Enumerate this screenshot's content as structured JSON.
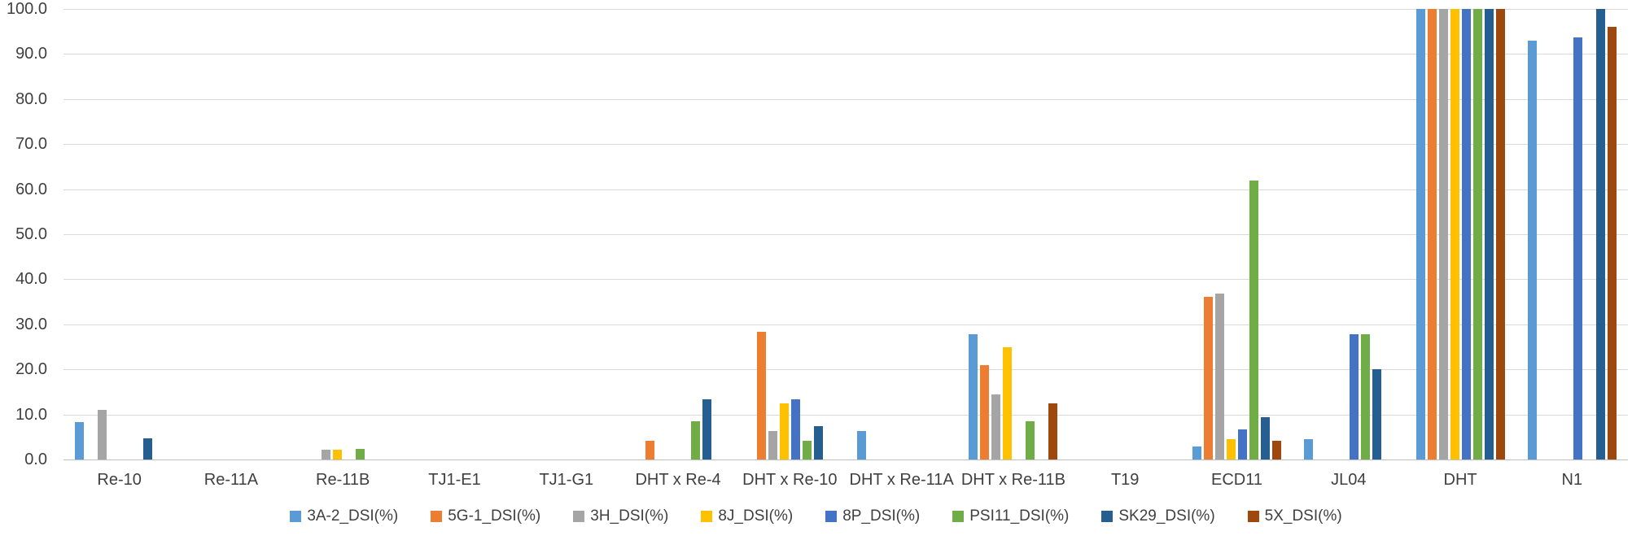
{
  "chart_data": {
    "type": "bar",
    "title": "",
    "xlabel": "",
    "ylabel": "",
    "ylim": [
      0,
      100
    ],
    "ytick_step": 10,
    "ytick_labels": [
      "0.0",
      "10.0",
      "20.0",
      "30.0",
      "40.0",
      "50.0",
      "60.0",
      "70.0",
      "80.0",
      "90.0",
      "100.0"
    ],
    "grid": true,
    "legend_position": "bottom",
    "categories": [
      "Re-10",
      "Re-11A",
      "Re-11B",
      "TJ1-E1",
      "TJ1-G1",
      "DHT x Re-4",
      "DHT x Re-10",
      "DHT x Re-11A",
      "DHT x Re-11B",
      "T19",
      "ECD11",
      "JL04",
      "DHT",
      "N1"
    ],
    "series": [
      {
        "name": "3A-2_DSI(%)",
        "color": "#5B9BD5",
        "values": [
          8.3,
          0,
          0,
          0,
          0,
          0,
          0,
          6.3,
          27.8,
          0,
          2.9,
          4.6,
          100,
          93.0
        ]
      },
      {
        "name": "5G-1_DSI(%)",
        "color": "#ED7D31",
        "values": [
          0,
          0,
          0,
          0,
          0,
          4.2,
          28.3,
          0,
          21.0,
          0,
          36.1,
          0,
          100,
          0
        ]
      },
      {
        "name": "3H_DSI(%)",
        "color": "#A5A5A5",
        "values": [
          11.1,
          0,
          2.1,
          0,
          0,
          0,
          6.3,
          0,
          14.5,
          0,
          36.9,
          0,
          100,
          0
        ]
      },
      {
        "name": "8J_DSI(%)",
        "color": "#FFC000",
        "values": [
          0,
          0,
          2.1,
          0,
          0,
          0,
          12.4,
          0,
          25.0,
          0,
          4.6,
          0,
          100,
          0
        ]
      },
      {
        "name": "8P_DSI(%)",
        "color": "#4472C4",
        "values": [
          0,
          0,
          0,
          0,
          0,
          0,
          13.3,
          0,
          0,
          0,
          6.7,
          27.8,
          100,
          93.6
        ]
      },
      {
        "name": "PSI11_DSI(%)",
        "color": "#70AD47",
        "values": [
          0,
          0,
          2.4,
          0,
          0,
          8.4,
          4.2,
          0,
          8.4,
          0,
          61.9,
          27.8,
          100,
          0
        ]
      },
      {
        "name": "SK29_DSI(%)",
        "color": "#255E91",
        "values": [
          4.7,
          0,
          0,
          0,
          0,
          13.4,
          7.4,
          0,
          0,
          0,
          9.4,
          20.0,
          100,
          100
        ]
      },
      {
        "name": "5X_DSI(%)",
        "color": "#9E480E",
        "values": [
          0,
          0,
          0,
          0,
          0,
          0,
          0,
          0,
          12.4,
          0,
          4.2,
          0,
          100,
          96.0
        ]
      }
    ]
  },
  "colors": {
    "grid": "#D9D9D9",
    "baseline": "#BFBFBF",
    "text": "#404040",
    "background": "#FFFFFF"
  }
}
